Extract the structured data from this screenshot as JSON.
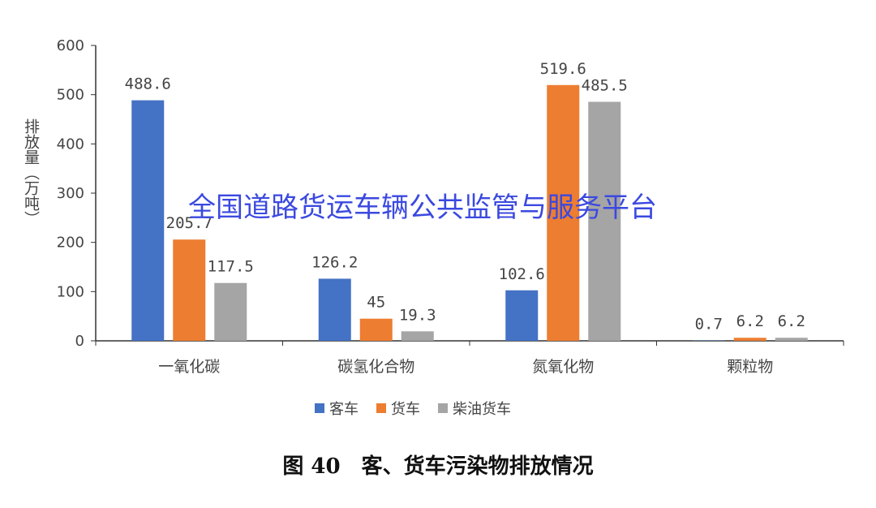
{
  "chart_data": {
    "type": "bar",
    "title": "",
    "ylabel": "排放量（万吨）",
    "xlabel": "",
    "ylim": [
      0,
      600
    ],
    "yticks": [
      "0",
      "100",
      "200",
      "300",
      "400",
      "500",
      "600"
    ],
    "grid": false,
    "legend_position": "bottom",
    "categories": [
      "一氧化碳",
      "碳氢化合物",
      "氮氧化物",
      "颗粒物"
    ],
    "series": [
      {
        "name": "客车",
        "color": "#4472c4",
        "values": [
          488.6,
          126.2,
          102.6,
          0.7
        ],
        "labels": [
          "488.6",
          "126.2",
          "102.6",
          "0.7"
        ]
      },
      {
        "name": "货车",
        "color": "#ed7d31",
        "values": [
          205.7,
          45,
          519.6,
          6.2
        ],
        "labels": [
          "205.7",
          "45",
          "519.6",
          "6.2"
        ]
      },
      {
        "name": "柴油货车",
        "color": "#a5a5a5",
        "values": [
          117.5,
          19.3,
          485.5,
          6.2
        ],
        "labels": [
          "117.5",
          "19.3",
          "485.5",
          "6.2"
        ]
      }
    ]
  },
  "watermark": "全国道路货运车辆公共监管与服务平台",
  "caption": "图 40　客、货车污染物排放情况"
}
